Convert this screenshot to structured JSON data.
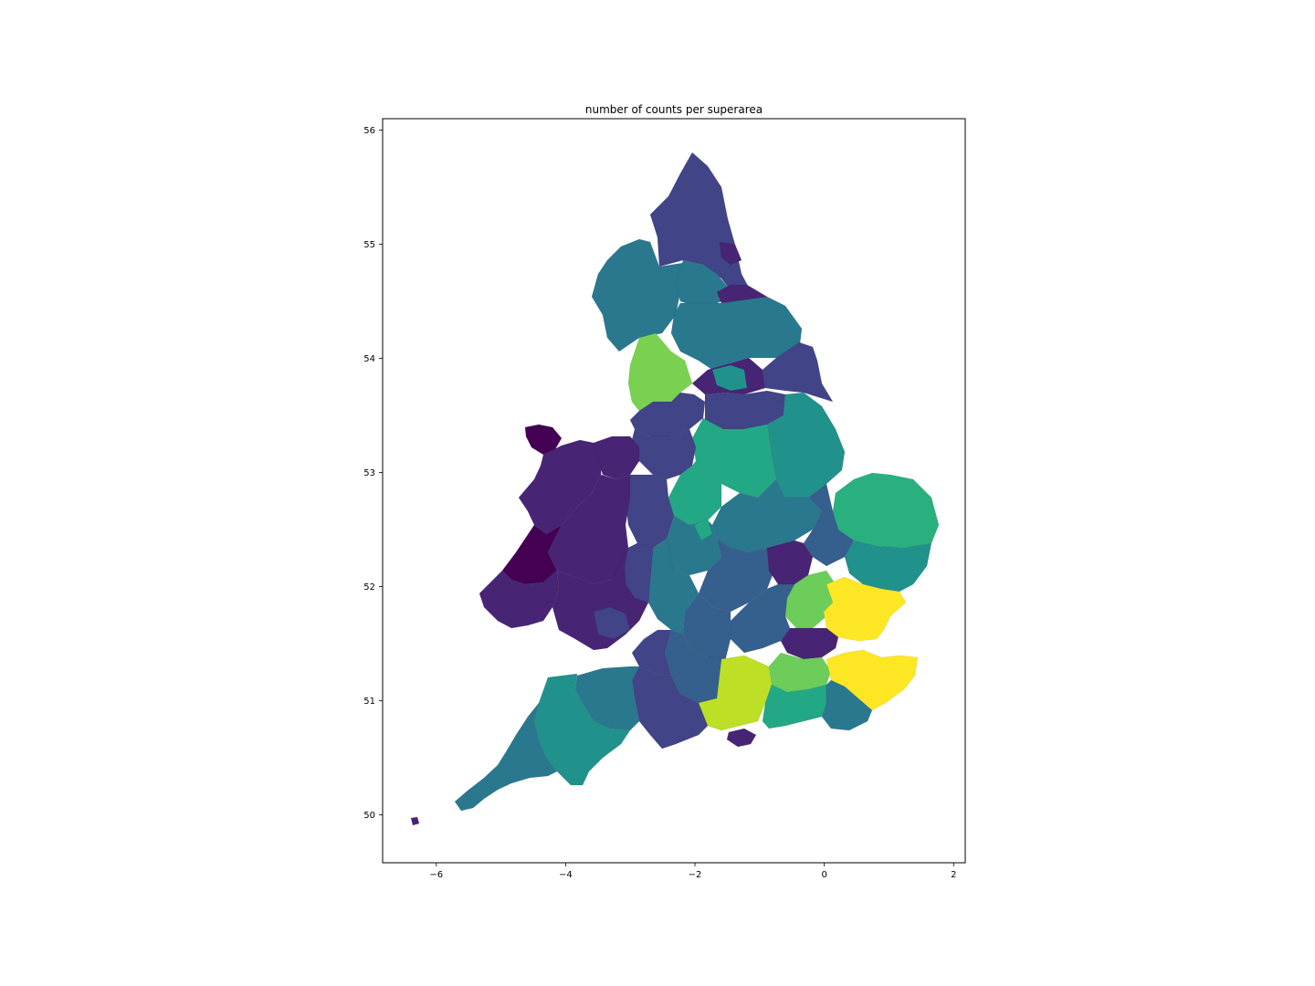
{
  "chart_data": {
    "type": "choropleth",
    "title": "number of counts per superarea",
    "xlabel": "",
    "ylabel": "",
    "xlim": [
      -6.83,
      2.18
    ],
    "ylim": [
      49.58,
      56.1
    ],
    "x_ticks": [
      -6,
      -4,
      -2,
      0,
      2
    ],
    "y_ticks": [
      50,
      51,
      52,
      53,
      54,
      55,
      56
    ],
    "colormap": "viridis",
    "grid": false,
    "legend": "none",
    "palette": {
      "v0": "#440154",
      "v1": "#482475",
      "v2": "#414487",
      "v3": "#355f8d",
      "v4": "#2a788e",
      "v5": "#21918c",
      "v6": "#22a884",
      "v7": "#2ab07f",
      "v8": "#7ad151",
      "v9": "#6ccd5a",
      "v10": "#bddf26",
      "v11": "#fde725"
    }
  }
}
